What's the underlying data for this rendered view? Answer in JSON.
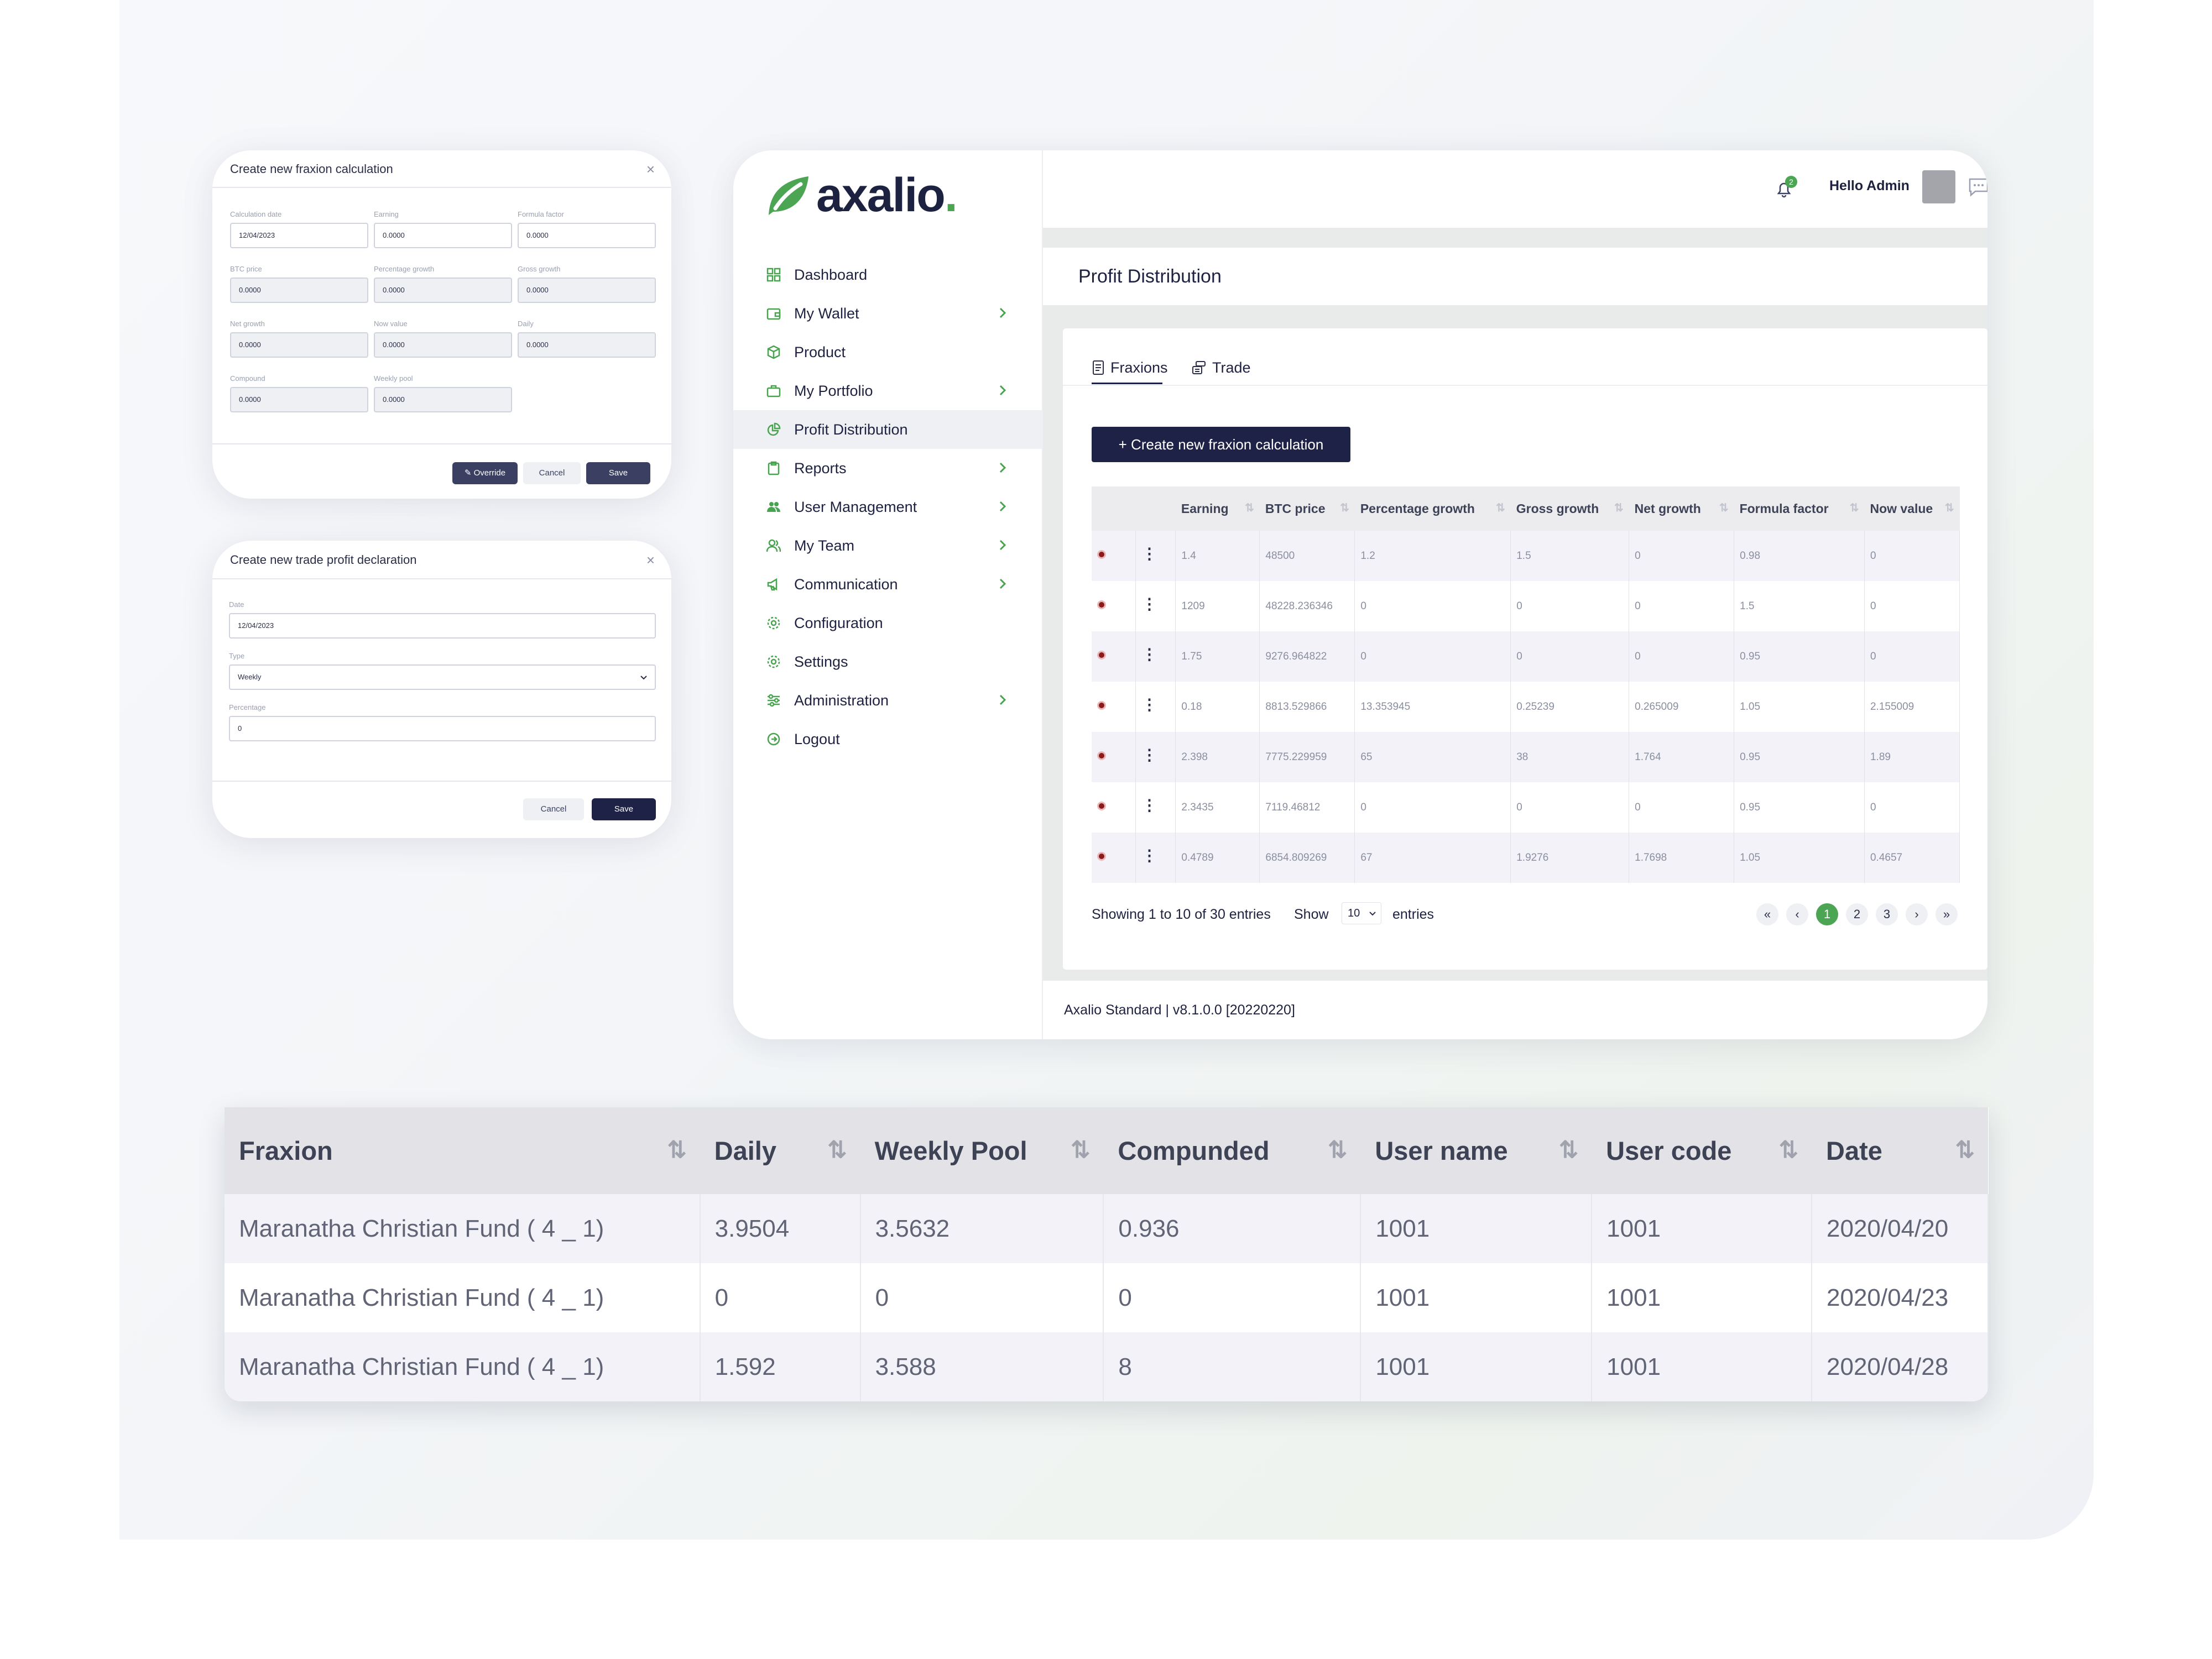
{
  "fraxion_modal": {
    "title": "Create new fraxion calculation",
    "close": "×",
    "fields": [
      {
        "label": "Calculation date",
        "value": "12/04/2023"
      },
      {
        "label": "Earning",
        "value": "0.0000"
      },
      {
        "label": "Formula factor",
        "value": "0.0000"
      },
      {
        "label": "BTC price",
        "value": "0.0000"
      },
      {
        "label": "Percentage growth",
        "value": "0.0000"
      },
      {
        "label": "Gross growth",
        "value": "0.0000"
      },
      {
        "label": "Net growth",
        "value": "0.0000"
      },
      {
        "label": "Now value",
        "value": "0.0000"
      },
      {
        "label": "Daily",
        "value": "0.0000"
      },
      {
        "label": "Compound",
        "value": "0.0000"
      },
      {
        "label": "Weekly pool",
        "value": "0.0000"
      }
    ],
    "override_label": "✎ Override",
    "cancel_label": "Cancel",
    "save_label": "Save"
  },
  "trade_modal": {
    "title": "Create new trade profit declaration",
    "close": "×",
    "date_label": "Date",
    "date_value": "12/04/2023",
    "type_label": "Type",
    "type_value": "Weekly",
    "percentage_label": "Percentage",
    "percentage_value": "0",
    "cancel_label": "Cancel",
    "save_label": "Save"
  },
  "brand": {
    "name": "axalio",
    "dot": ".",
    "accent": "#4ca552",
    "navy": "#1e2246"
  },
  "sidebar": {
    "items": [
      {
        "label": "Dashboard",
        "icon": "grid-icon"
      },
      {
        "label": "My Wallet",
        "icon": "wallet-icon"
      },
      {
        "label": "Product",
        "icon": "box-icon"
      },
      {
        "label": "My Portfolio",
        "icon": "briefcase-icon"
      },
      {
        "label": "Profit Distribution",
        "icon": "pie-icon"
      },
      {
        "label": "Reports",
        "icon": "clipboard-icon"
      },
      {
        "label": "User Management",
        "icon": "users-icon"
      },
      {
        "label": "My Team",
        "icon": "team-icon"
      },
      {
        "label": "Communication",
        "icon": "megaphone-icon"
      },
      {
        "label": "Configuration",
        "icon": "cog-icon"
      },
      {
        "label": "Settings",
        "icon": "gear-icon"
      },
      {
        "label": "Administration",
        "icon": "sliders-icon"
      },
      {
        "label": "Logout",
        "icon": "logout-icon"
      }
    ]
  },
  "header": {
    "greeting": "Hello Admin",
    "notification_count": "2"
  },
  "page": {
    "title": "Profit Distribution",
    "tabs": [
      "Fraxions",
      "Trade"
    ],
    "create_button": "+ Create new fraxion calculation",
    "columns": [
      "Earning",
      "BTC price",
      "Percentage growth",
      "Gross growth",
      "Net growth",
      "Formula factor",
      "Now value"
    ],
    "rows": [
      [
        "1.4",
        "48500",
        "1.2",
        "1.5",
        "0",
        "0.98",
        "0"
      ],
      [
        "1209",
        "48228.236346",
        "0",
        "0",
        "0",
        "1.5",
        "0"
      ],
      [
        "1.75",
        "9276.964822",
        "0",
        "0",
        "0",
        "0.95",
        "0"
      ],
      [
        "0.18",
        "8813.529866",
        "13.353945",
        "0.25239",
        "0.265009",
        "1.05",
        "2.155009"
      ],
      [
        "2.398",
        "7775.229959",
        "65",
        "38",
        "1.764",
        "0.95",
        "1.89"
      ],
      [
        "2.3435",
        "7119.46812",
        "0",
        "0",
        "0",
        "0.95",
        "0"
      ],
      [
        "0.4789",
        "6854.809269",
        "67",
        "1.9276",
        "1.7698",
        "1.05",
        "0.4657"
      ]
    ],
    "showing": "Showing 1 to 10 of 30 entries",
    "show_label": "Show",
    "page_size": "10",
    "entries_label": "entries",
    "pages": [
      "1",
      "2",
      "3"
    ],
    "nav": {
      "first": "«",
      "prev": "‹",
      "next": "›",
      "last": "»"
    }
  },
  "footer": "Axalio Standard | v8.1.0.0 [20220220]",
  "fraxion_table": {
    "columns": [
      "Fraxion",
      "Daily",
      "Weekly Pool",
      "Compunded",
      "User name",
      "User code",
      "Date"
    ],
    "rows": [
      [
        "Maranatha Christian Fund ( 4 _ 1)",
        "3.9504",
        "3.5632",
        "0.936",
        "1001",
        "1001",
        "2020/04/20"
      ],
      [
        "Maranatha Christian Fund ( 4 _ 1)",
        "0",
        "0",
        "0",
        "1001",
        "1001",
        "2020/04/23"
      ],
      [
        "Maranatha Christian Fund ( 4 _ 1)",
        "1.592",
        "3.588",
        "8",
        "1001",
        "1001",
        "2020/04/28"
      ]
    ]
  }
}
